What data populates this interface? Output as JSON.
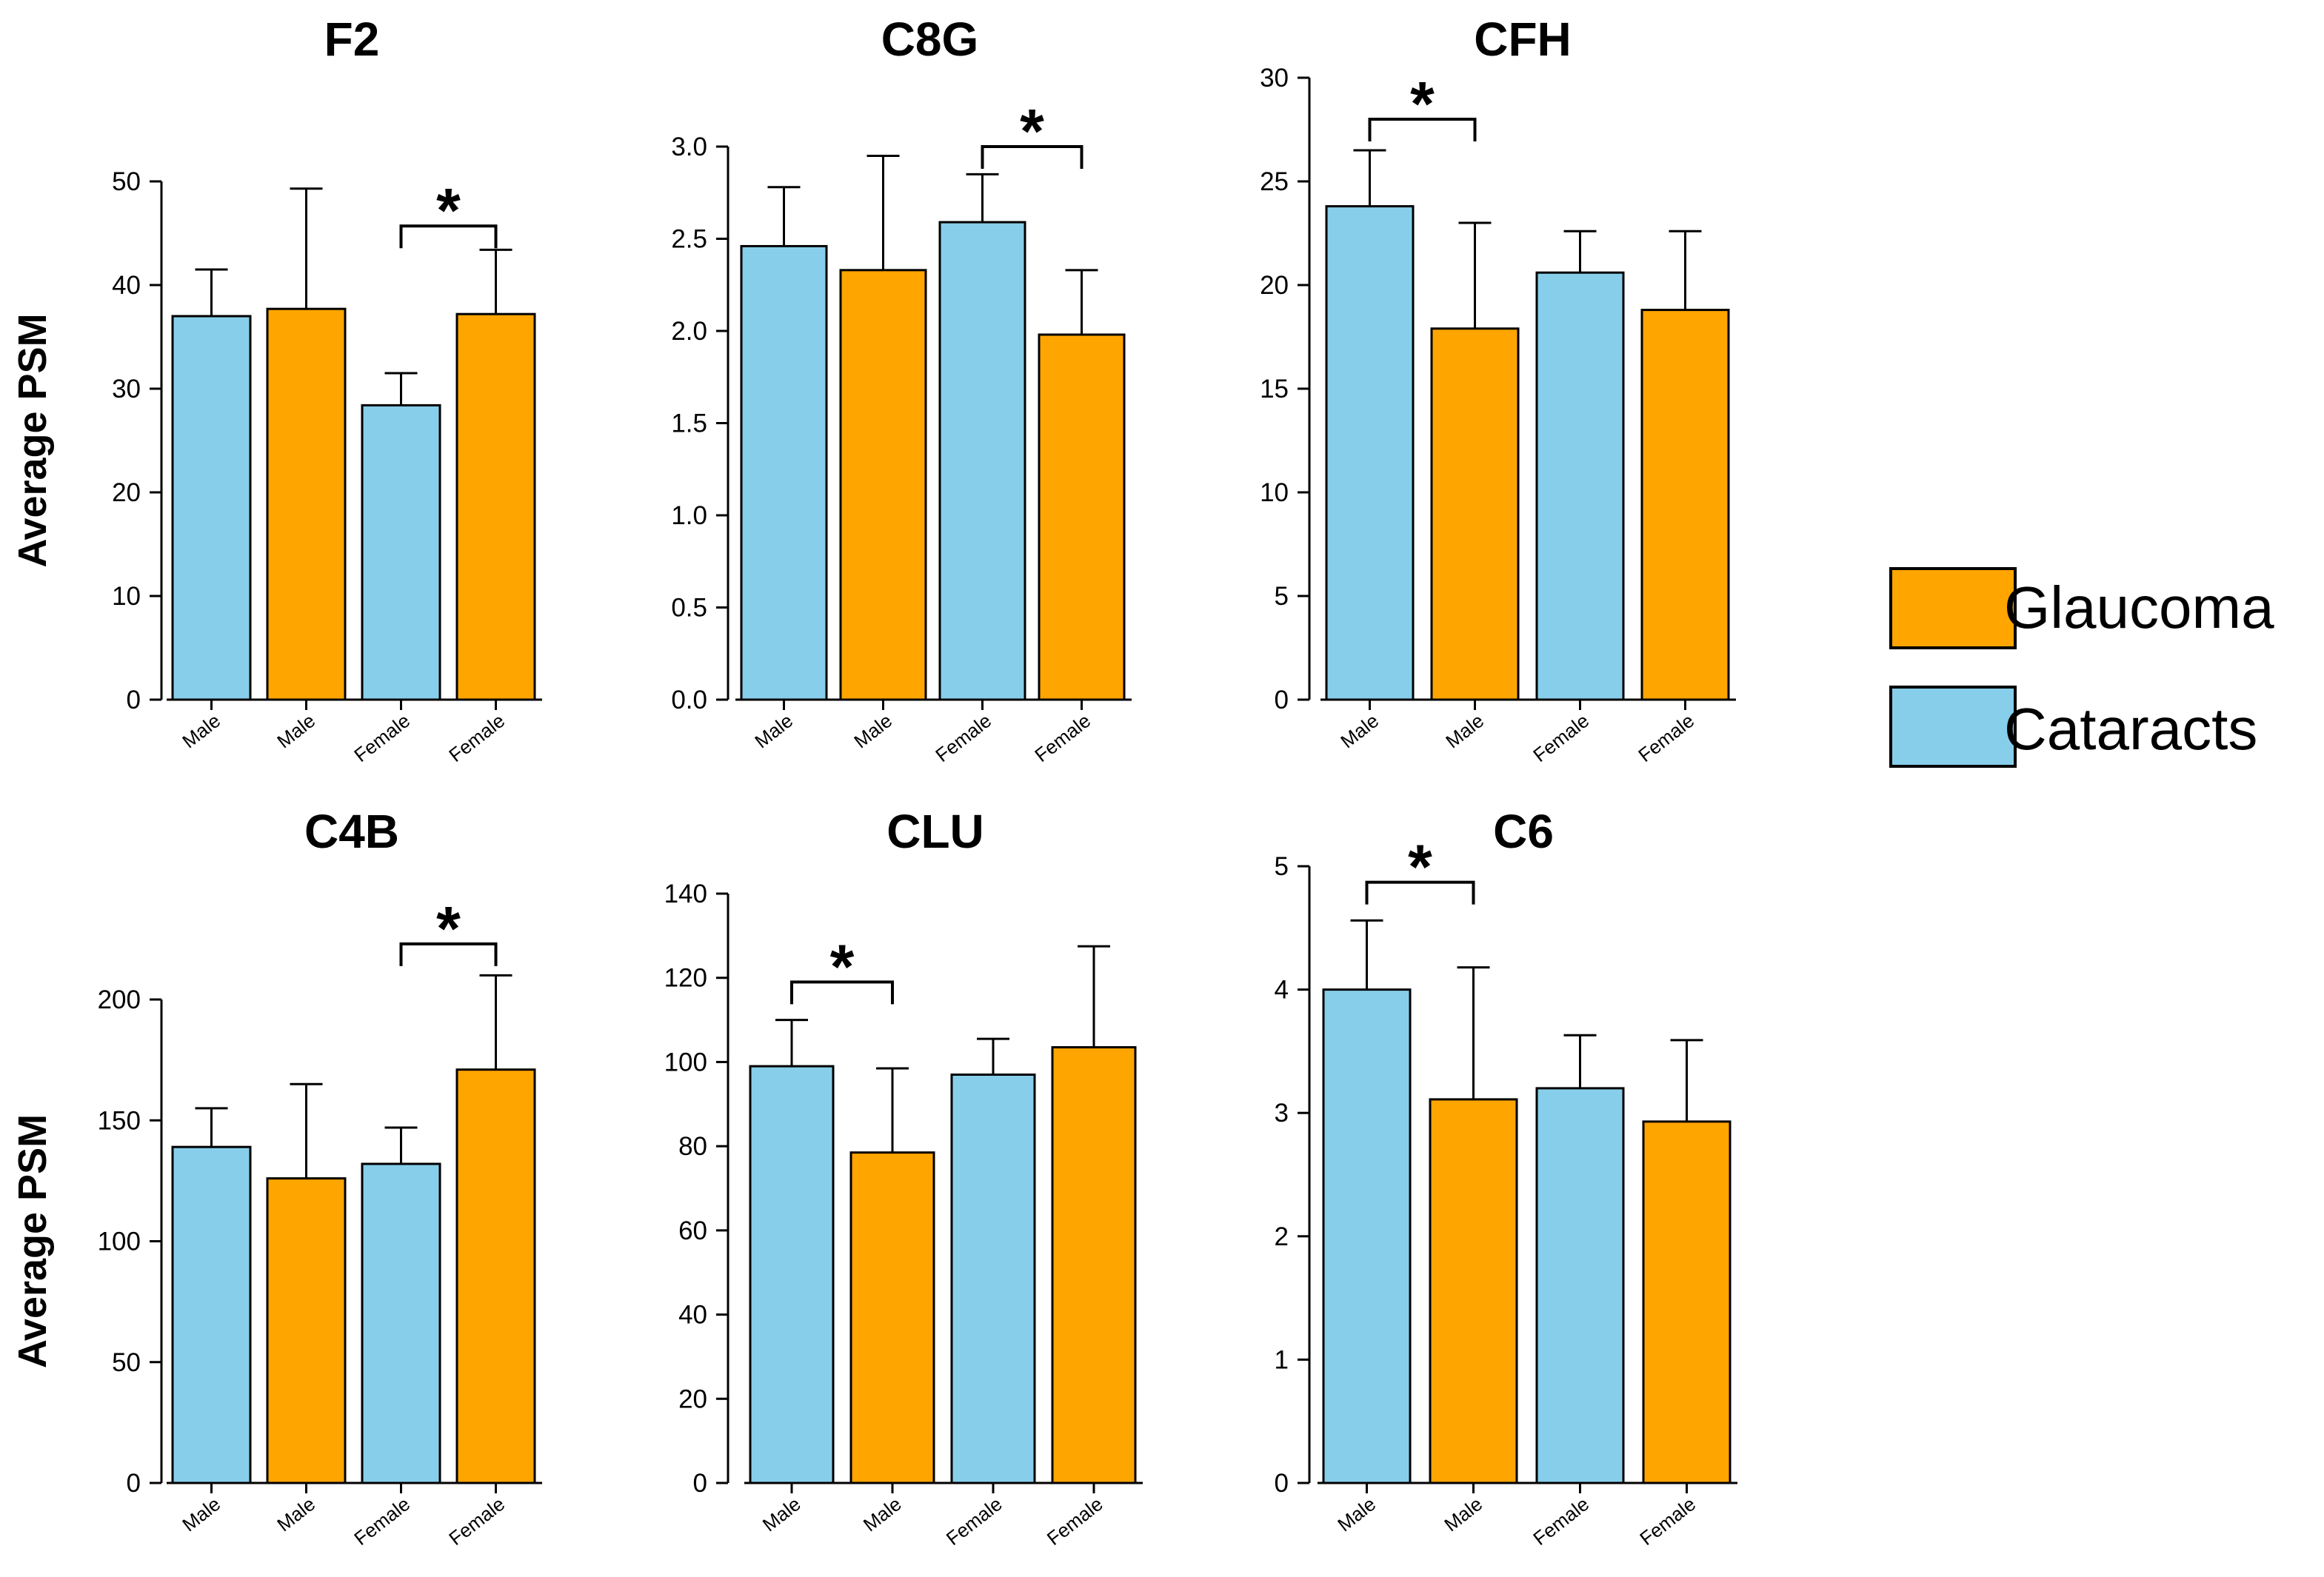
{
  "colors": {
    "glaucoma": "#FFA500",
    "cataracts": "#87CEEB",
    "stroke": "#000000"
  },
  "legend": {
    "items": [
      {
        "label": "Glaucoma",
        "series": "glaucoma"
      },
      {
        "label": "Cataracts",
        "series": "cataracts"
      }
    ]
  },
  "chart_data": [
    {
      "type": "bar",
      "title": "F2",
      "ylabel": "Average  PSM",
      "categories": [
        "Male",
        "Male",
        "Female",
        "Female"
      ],
      "series": [
        "cataracts",
        "glaucoma",
        "cataracts",
        "glaucoma"
      ],
      "values": [
        37,
        37.7,
        28.4,
        37.2
      ],
      "errors": [
        4.5,
        11.6,
        3.1,
        6.2
      ],
      "ylim": [
        0,
        50
      ],
      "yticks": [
        0,
        10,
        20,
        30,
        40,
        50
      ],
      "tick_decimals": 0,
      "significance": {
        "pair": [
          2,
          3
        ],
        "level": 45.7,
        "label": "*"
      }
    },
    {
      "type": "bar",
      "title": "C8G",
      "ylabel": "",
      "categories": [
        "Male",
        "Male",
        "Female",
        "Female"
      ],
      "series": [
        "cataracts",
        "glaucoma",
        "cataracts",
        "glaucoma"
      ],
      "values": [
        2.46,
        2.33,
        2.59,
        1.98
      ],
      "errors": [
        0.32,
        0.62,
        0.26,
        0.35
      ],
      "ylim": [
        0,
        3
      ],
      "yticks": [
        0,
        0.5,
        1,
        1.5,
        2,
        2.5,
        3
      ],
      "tick_decimals": 1,
      "significance": {
        "pair": [
          2,
          3
        ],
        "level": 3.0,
        "label": "*"
      }
    },
    {
      "type": "bar",
      "title": "CFH",
      "ylabel": "",
      "categories": [
        "Male",
        "Male",
        "Female",
        "Female"
      ],
      "series": [
        "cataracts",
        "glaucoma",
        "cataracts",
        "glaucoma"
      ],
      "values": [
        23.8,
        17.9,
        20.6,
        18.8
      ],
      "errors": [
        2.7,
        5.1,
        2.0,
        3.8
      ],
      "ylim": [
        0,
        30
      ],
      "yticks": [
        0,
        5,
        10,
        15,
        20,
        25,
        30
      ],
      "tick_decimals": 0,
      "significance": {
        "pair": [
          0,
          1
        ],
        "level": 28.0,
        "label": "*"
      }
    },
    {
      "type": "bar",
      "title": "C4B",
      "ylabel": "Average  PSM",
      "categories": [
        "Male",
        "Male",
        "Female",
        "Female"
      ],
      "series": [
        "cataracts",
        "glaucoma",
        "cataracts",
        "glaucoma"
      ],
      "values": [
        139,
        126,
        132,
        171
      ],
      "errors": [
        16,
        39,
        15,
        39
      ],
      "ylim": [
        0,
        200
      ],
      "yticks": [
        0,
        50,
        100,
        150,
        200
      ],
      "tick_decimals": 0,
      "significance": {
        "pair": [
          2,
          3
        ],
        "level": 223,
        "label": "*"
      }
    },
    {
      "type": "bar",
      "title": "CLU",
      "ylabel": "",
      "categories": [
        "Male",
        "Male",
        "Female",
        "Female"
      ],
      "series": [
        "cataracts",
        "glaucoma",
        "cataracts",
        "glaucoma"
      ],
      "values": [
        99,
        78.5,
        97,
        103.5
      ],
      "errors": [
        11,
        20,
        8.5,
        24
      ],
      "ylim": [
        0,
        140
      ],
      "yticks": [
        0,
        20,
        40,
        60,
        80,
        100,
        120,
        140
      ],
      "tick_decimals": 0,
      "significance": {
        "pair": [
          0,
          1
        ],
        "level": 119,
        "label": "*"
      }
    },
    {
      "type": "bar",
      "title": "C6",
      "ylabel": "",
      "categories": [
        "Male",
        "Male",
        "Female",
        "Female"
      ],
      "series": [
        "cataracts",
        "glaucoma",
        "cataracts",
        "glaucoma"
      ],
      "values": [
        4.0,
        3.11,
        3.2,
        2.93
      ],
      "errors": [
        0.56,
        1.07,
        0.43,
        0.66
      ],
      "ylim": [
        0,
        5
      ],
      "yticks": [
        0,
        1,
        2,
        3,
        4,
        5
      ],
      "tick_decimals": 0,
      "significance": {
        "pair": [
          0,
          1
        ],
        "level": 4.87,
        "label": "*"
      }
    }
  ]
}
